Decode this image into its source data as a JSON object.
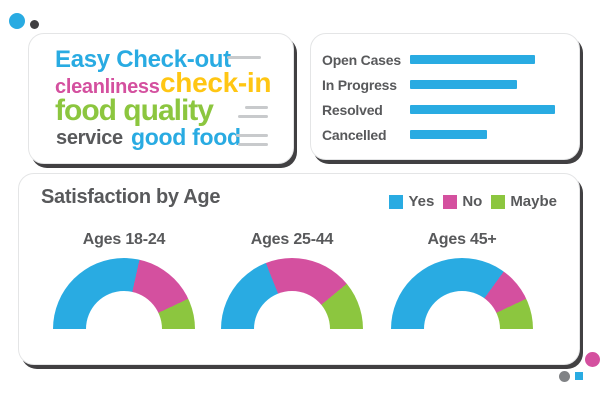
{
  "colors": {
    "blue": "#29ABE2",
    "pink": "#D4509F",
    "yellow": "#FFC613",
    "green": "#8CC63F",
    "text_gray": "#58595B",
    "line_gray": "#C8CACC",
    "outline_dark": "#414042",
    "dot_gray": "#808285"
  },
  "word_cloud": {
    "words": [
      {
        "text": "Easy Check-out",
        "color": "blue"
      },
      {
        "text": "cleanliness",
        "color": "pink"
      },
      {
        "text": "check-in",
        "color": "yellow"
      },
      {
        "text": "food quality",
        "color": "green"
      },
      {
        "text": "service",
        "color": "text_gray"
      },
      {
        "text": "good food",
        "color": "blue"
      }
    ]
  },
  "satisfaction": {
    "title": "Satisfaction by Age",
    "legend": [
      {
        "label": "Yes",
        "color": "blue"
      },
      {
        "label": "No",
        "color": "pink"
      },
      {
        "label": "Maybe",
        "color": "green"
      }
    ]
  },
  "chart_data": [
    {
      "type": "bar",
      "orientation": "horizontal",
      "title": "",
      "categories": [
        "Open Cases",
        "In Progress",
        "Resolved",
        "Cancelled"
      ],
      "values": [
        86,
        74,
        100,
        53
      ],
      "value_note": "no numeric axis shown; values estimated as percent of longest bar",
      "bar_color": "blue",
      "grid": false,
      "legend_position": "none"
    },
    {
      "type": "pie",
      "variant": "semi-donut",
      "title": "Ages 18-24",
      "labels": [
        "Yes",
        "No",
        "Maybe"
      ],
      "values": [
        57,
        29,
        14
      ],
      "colors": [
        "blue",
        "pink",
        "green"
      ]
    },
    {
      "type": "pie",
      "variant": "semi-donut",
      "title": "Ages 25-44",
      "labels": [
        "Yes",
        "No",
        "Maybe"
      ],
      "values": [
        38,
        40,
        22
      ],
      "colors": [
        "blue",
        "pink",
        "green"
      ]
    },
    {
      "type": "pie",
      "variant": "semi-donut",
      "title": "Ages 45+",
      "labels": [
        "Yes",
        "No",
        "Maybe"
      ],
      "values": [
        70,
        16,
        14
      ],
      "colors": [
        "blue",
        "pink",
        "green"
      ]
    }
  ]
}
